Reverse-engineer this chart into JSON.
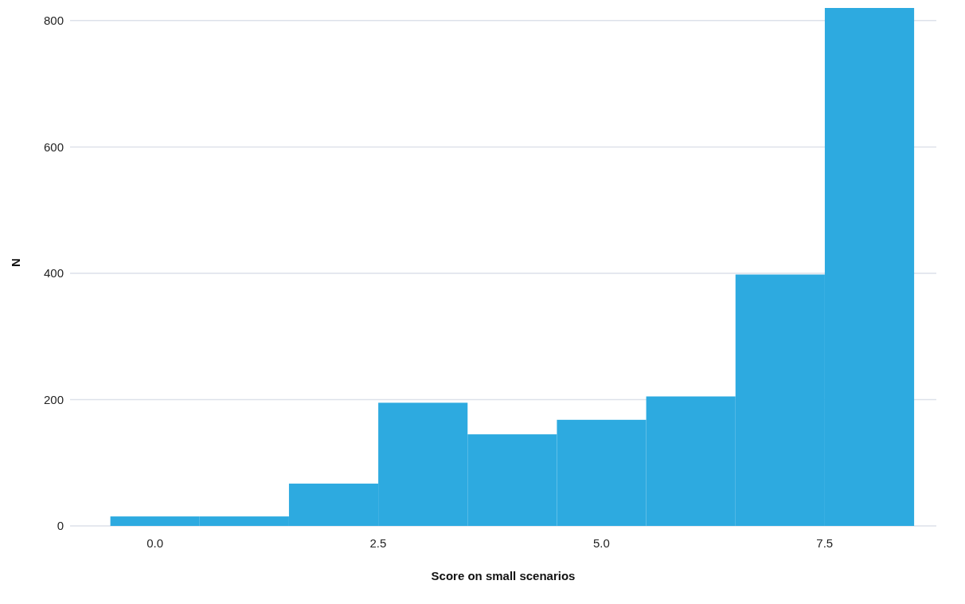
{
  "chart_data": {
    "type": "histogram",
    "xlabel": "Score on small scenarios",
    "ylabel": "N",
    "bins": [
      -0.5,
      0.5,
      1.5,
      2.5,
      3.5,
      4.5,
      5.5,
      6.5,
      7.5,
      8.5
    ],
    "values": [
      15,
      15,
      67,
      195,
      145,
      168,
      205,
      398,
      820
    ],
    "color": "#29a8df",
    "xlim": [
      -0.95,
      8.75
    ],
    "xticks": [
      {
        "value": 0,
        "label": "0.0"
      },
      {
        "value": 2.5,
        "label": "2.5"
      },
      {
        "value": 5,
        "label": "5.0"
      },
      {
        "value": 7.5,
        "label": "7.5"
      }
    ],
    "ylim": [
      0,
      820
    ],
    "yticks": [
      0,
      200,
      400,
      600,
      800
    ],
    "grid": "y"
  }
}
